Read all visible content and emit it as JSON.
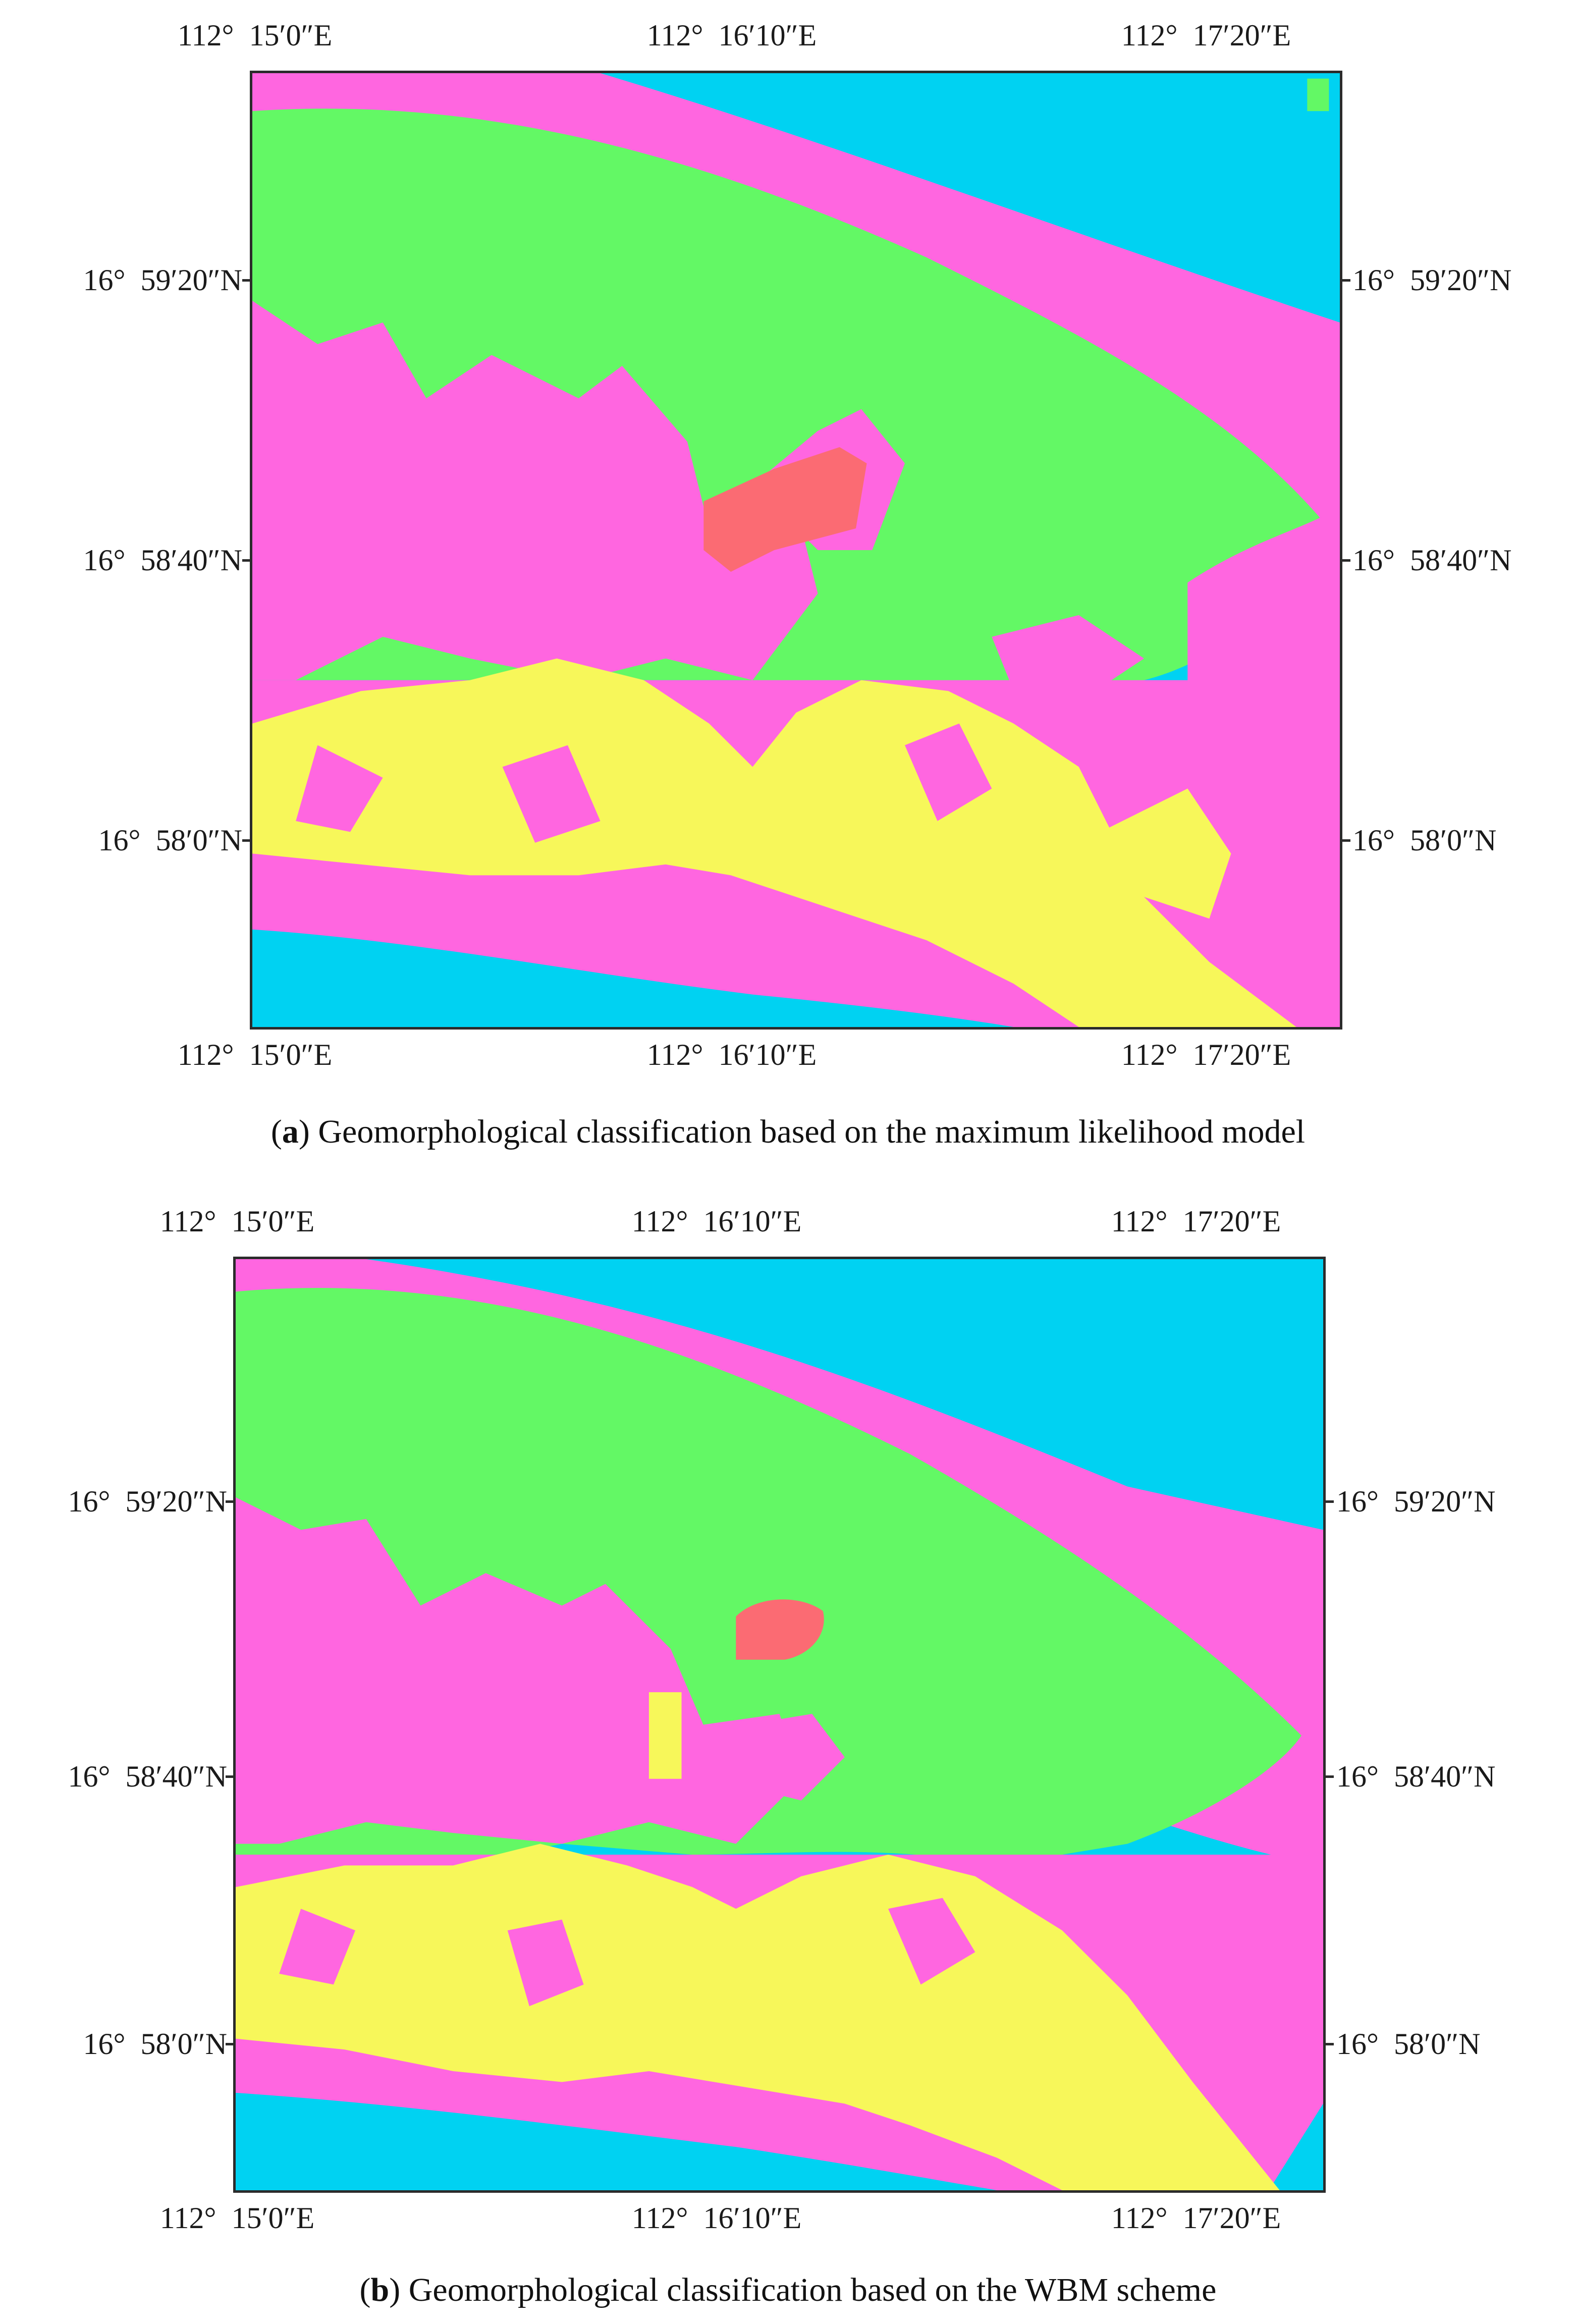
{
  "colors": {
    "sea": "#00d2f2",
    "reef_flat_pink": "#ff66e0",
    "vegetated_green": "#63f865",
    "sand_yellow": "#f7f75a",
    "core_red": "#fb6b73",
    "frame": "#2b2b2b"
  },
  "panels": [
    {
      "id": "a",
      "caption_letter": "a",
      "caption_text": "Geomorphological classification based on the maximum likelihood model",
      "x_ticks": [
        "112°  15′0″E",
        "112°  16′10″E",
        "112°  17′20″E"
      ],
      "y_ticks_left": [
        "16°  59′20″N",
        "16°  58′40″N",
        "16°  58′0″N"
      ],
      "y_ticks_right": [
        "16°  59′20″N",
        "16°  58′40″N",
        "16°  58′0″N"
      ]
    },
    {
      "id": "b",
      "caption_letter": "b",
      "caption_text": "Geomorphological classification based on the WBM scheme",
      "x_ticks": [
        "112°  15′0″E",
        "112°  16′10″E",
        "112°  17′20″E"
      ],
      "y_ticks_left": [
        "16°  59′20″N",
        "16°  58′40″N",
        "16°  58′0″N"
      ],
      "y_ticks_right": [
        "16°  59′20″N",
        "16°  58′40″N",
        "16°  58′0″N"
      ]
    }
  ]
}
